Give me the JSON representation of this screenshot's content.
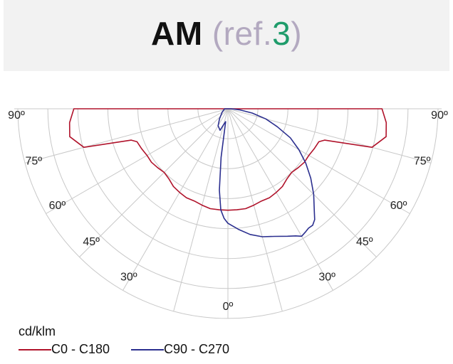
{
  "title": {
    "main": "AM",
    "ref_open": "(ref.",
    "ref_num": "3",
    "ref_close": ")"
  },
  "colors": {
    "title_band": "#f2f2f2",
    "ref_text": "#b3a9c0",
    "ref_number": "#1f9c6b",
    "series_c0": "#b0132b",
    "series_c90": "#2b2f8f",
    "grid": "#c8c8c8"
  },
  "chart_data": {
    "type": "polar",
    "unit_label": "cd/klm",
    "angle_labels_left": [
      "90º",
      "75º",
      "60º",
      "45º",
      "30º"
    ],
    "angle_labels_right": [
      "90º",
      "75º",
      "60º",
      "45º",
      "30º"
    ],
    "angle_label_center": "0º",
    "angle_ticks": [
      90,
      75,
      60,
      45,
      30,
      0
    ],
    "radial_rings": 7,
    "grid": true,
    "legend_position": "bottom-left",
    "series": [
      {
        "name": "C0 - C180",
        "color": "#b0132b",
        "points": [
          [
            -90,
            0.94
          ],
          [
            -85,
            0.97
          ],
          [
            -80,
            0.98
          ],
          [
            -75,
            0.91
          ],
          [
            -72,
            0.62
          ],
          [
            -70,
            0.59
          ],
          [
            -65,
            0.58
          ],
          [
            -60,
            0.57
          ],
          [
            -55,
            0.57
          ],
          [
            -50,
            0.56
          ],
          [
            -45,
            0.55
          ],
          [
            -40,
            0.56
          ],
          [
            -35,
            0.58
          ],
          [
            -30,
            0.59
          ],
          [
            -25,
            0.6
          ],
          [
            -20,
            0.6
          ],
          [
            -15,
            0.61
          ],
          [
            -10,
            0.62
          ],
          [
            -5,
            0.62
          ],
          [
            0,
            0.62
          ],
          [
            5,
            0.62
          ],
          [
            10,
            0.62
          ],
          [
            15,
            0.61
          ],
          [
            20,
            0.6
          ],
          [
            25,
            0.6
          ],
          [
            30,
            0.59
          ],
          [
            35,
            0.58
          ],
          [
            40,
            0.56
          ],
          [
            45,
            0.55
          ],
          [
            50,
            0.56
          ],
          [
            55,
            0.57
          ],
          [
            60,
            0.57
          ],
          [
            65,
            0.58
          ],
          [
            70,
            0.59
          ],
          [
            72,
            0.62
          ],
          [
            75,
            0.91
          ],
          [
            80,
            0.98
          ],
          [
            85,
            0.97
          ],
          [
            90,
            0.94
          ]
        ]
      },
      {
        "name": "C90 - C270",
        "color": "#2b2f8f",
        "points": [
          [
            -90,
            0.02
          ],
          [
            -60,
            0.04
          ],
          [
            -40,
            0.08
          ],
          [
            -30,
            0.12
          ],
          [
            -20,
            0.14
          ],
          [
            -15,
            0.1
          ],
          [
            -10,
            0.08
          ],
          [
            -8,
            0.3
          ],
          [
            -6,
            0.5
          ],
          [
            -4,
            0.62
          ],
          [
            -2,
            0.67
          ],
          [
            0,
            0.7
          ],
          [
            5,
            0.74
          ],
          [
            10,
            0.78
          ],
          [
            15,
            0.81
          ],
          [
            20,
            0.83
          ],
          [
            25,
            0.86
          ],
          [
            28,
            0.88
          ],
          [
            30,
            0.9
          ],
          [
            32,
            0.89
          ],
          [
            34,
            0.88
          ],
          [
            36,
            0.88
          ],
          [
            38,
            0.86
          ],
          [
            40,
            0.82
          ],
          [
            45,
            0.74
          ],
          [
            50,
            0.66
          ],
          [
            55,
            0.58
          ],
          [
            60,
            0.5
          ],
          [
            65,
            0.42
          ],
          [
            70,
            0.32
          ],
          [
            75,
            0.24
          ],
          [
            80,
            0.15
          ],
          [
            85,
            0.07
          ],
          [
            90,
            0.02
          ]
        ]
      }
    ]
  }
}
